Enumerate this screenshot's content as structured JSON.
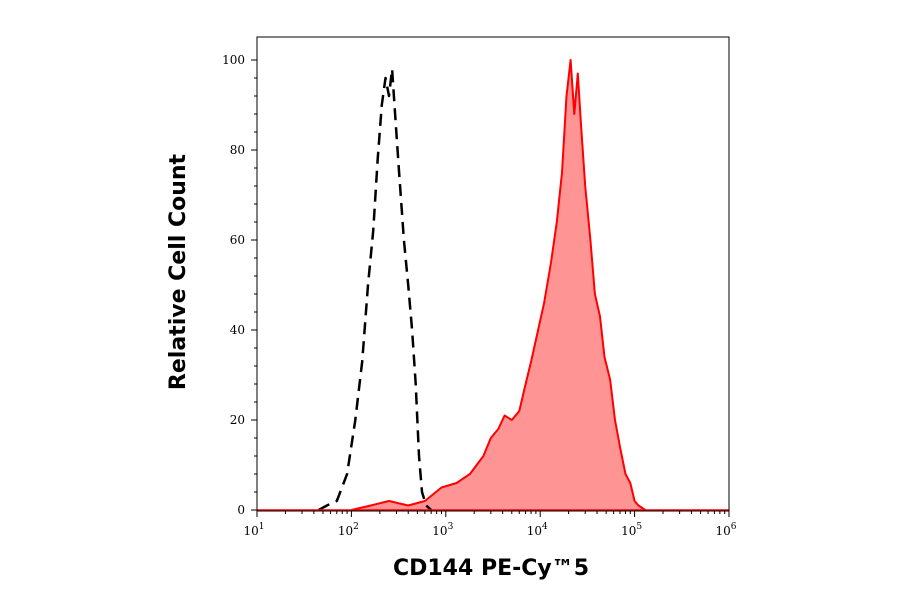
{
  "chart_data": {
    "type": "area",
    "title": "",
    "xlabel": "CD144 PE-Cy™5",
    "ylabel": "Relative Cell Count",
    "x_scale": "log10",
    "xlim": [
      10,
      1000000
    ],
    "ylim": [
      0,
      100
    ],
    "grid": false,
    "legend": "none",
    "x_ticks": [
      {
        "base": "10",
        "exp": "1"
      },
      {
        "base": "10",
        "exp": "2"
      },
      {
        "base": "10",
        "exp": "3"
      },
      {
        "base": "10",
        "exp": "4"
      },
      {
        "base": "10",
        "exp": "5"
      },
      {
        "base": "10",
        "exp": "6"
      }
    ],
    "y_ticks": [
      "0",
      "20",
      "40",
      "60",
      "80",
      "100"
    ],
    "series": [
      {
        "style": "dashed",
        "color": "#000000",
        "fill": "none",
        "points": [
          [
            45,
            0
          ],
          [
            55,
            1
          ],
          [
            70,
            2
          ],
          [
            90,
            8
          ],
          [
            110,
            20
          ],
          [
            130,
            33
          ],
          [
            150,
            50
          ],
          [
            170,
            62
          ],
          [
            190,
            78
          ],
          [
            210,
            90
          ],
          [
            230,
            96
          ],
          [
            250,
            92
          ],
          [
            270,
            98
          ],
          [
            290,
            88
          ],
          [
            320,
            75
          ],
          [
            360,
            60
          ],
          [
            400,
            50
          ],
          [
            440,
            40
          ],
          [
            480,
            28
          ],
          [
            520,
            12
          ],
          [
            560,
            4
          ],
          [
            620,
            1
          ],
          [
            700,
            0
          ]
        ]
      },
      {
        "style": "solid",
        "color": "#ff0000",
        "fill": "#ff9494",
        "points": [
          [
            100,
            0
          ],
          [
            160,
            1
          ],
          [
            250,
            2
          ],
          [
            400,
            1
          ],
          [
            600,
            2
          ],
          [
            900,
            5
          ],
          [
            1300,
            6
          ],
          [
            1800,
            8
          ],
          [
            2500,
            12
          ],
          [
            3000,
            16
          ],
          [
            3600,
            18
          ],
          [
            4200,
            21
          ],
          [
            5000,
            20
          ],
          [
            6000,
            22
          ],
          [
            7000,
            28
          ],
          [
            8000,
            33
          ],
          [
            9500,
            40
          ],
          [
            11000,
            46
          ],
          [
            13000,
            55
          ],
          [
            15000,
            64
          ],
          [
            17000,
            75
          ],
          [
            19000,
            92
          ],
          [
            21000,
            100
          ],
          [
            23000,
            88
          ],
          [
            25000,
            97
          ],
          [
            27000,
            86
          ],
          [
            30000,
            72
          ],
          [
            34000,
            60
          ],
          [
            38000,
            48
          ],
          [
            43000,
            43
          ],
          [
            48000,
            34
          ],
          [
            55000,
            29
          ],
          [
            62000,
            20
          ],
          [
            70000,
            14
          ],
          [
            80000,
            8
          ],
          [
            90000,
            6
          ],
          [
            100000,
            2
          ],
          [
            110000,
            1
          ],
          [
            130000,
            0
          ]
        ]
      }
    ]
  }
}
